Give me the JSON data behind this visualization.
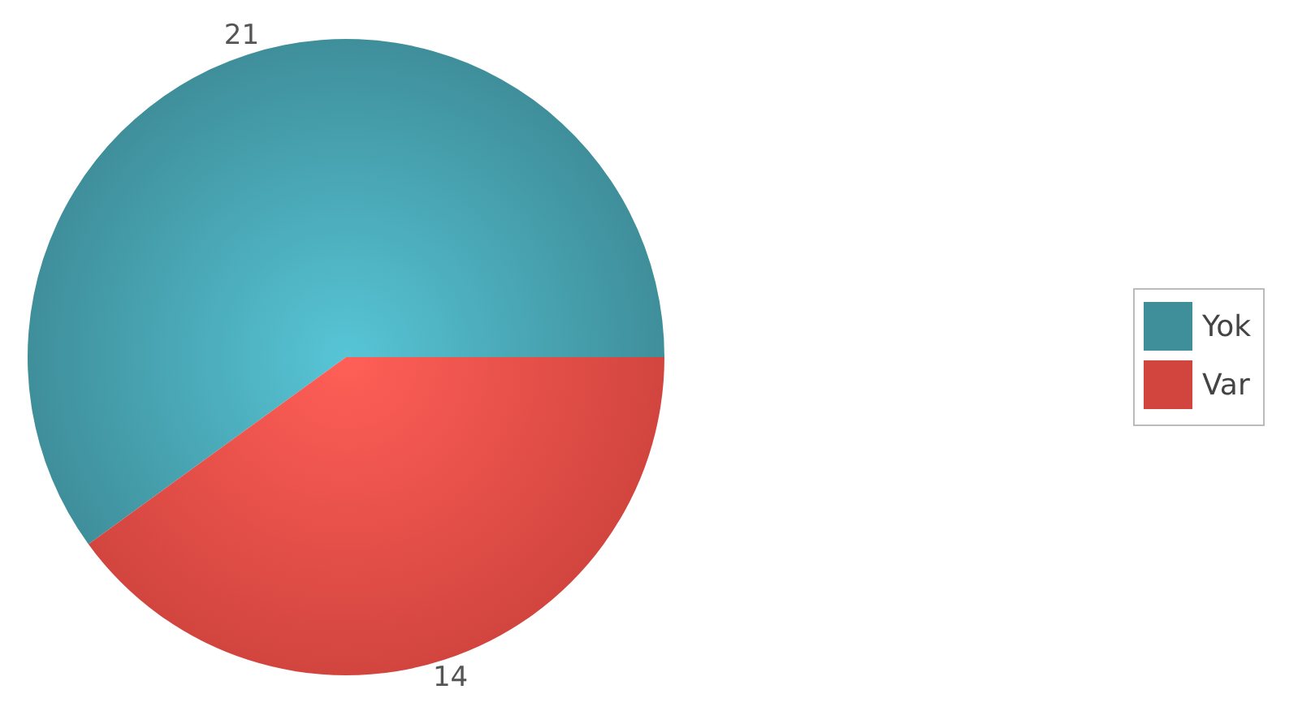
{
  "chart_data": {
    "type": "pie",
    "categories": [
      "Yok",
      "Var"
    ],
    "values": [
      21,
      14
    ],
    "colors": [
      "#3f8f9b",
      "#d2453f"
    ],
    "data_labels": true,
    "legend": "right"
  }
}
